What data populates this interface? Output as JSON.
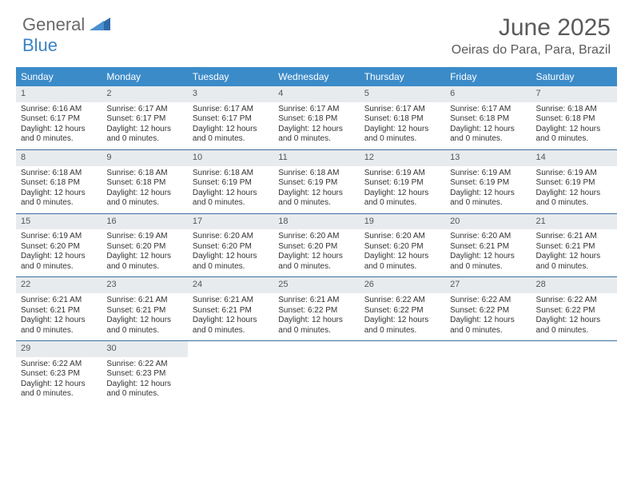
{
  "brand": {
    "word1": "General",
    "word2": "Blue"
  },
  "title": "June 2025",
  "location": "Oeiras do Para, Para, Brazil",
  "colors": {
    "header_bg": "#3b8bc9",
    "header_text": "#ffffff",
    "daynum_bg": "#e8ebee",
    "week_border": "#3b6fa0",
    "brand_gray": "#6a6a6a",
    "brand_blue": "#3b82c4",
    "title_color": "#5a5a5a",
    "body_text": "#333333"
  },
  "typography": {
    "title_fontsize": 30,
    "location_fontsize": 16,
    "dow_fontsize": 12,
    "daynum_fontsize": 11,
    "cell_fontsize": 10
  },
  "daysOfWeek": [
    "Sunday",
    "Monday",
    "Tuesday",
    "Wednesday",
    "Thursday",
    "Friday",
    "Saturday"
  ],
  "weeks": [
    [
      {
        "n": "1",
        "sunrise": "Sunrise: 6:16 AM",
        "sunset": "Sunset: 6:17 PM",
        "day": "Daylight: 12 hours and 0 minutes."
      },
      {
        "n": "2",
        "sunrise": "Sunrise: 6:17 AM",
        "sunset": "Sunset: 6:17 PM",
        "day": "Daylight: 12 hours and 0 minutes."
      },
      {
        "n": "3",
        "sunrise": "Sunrise: 6:17 AM",
        "sunset": "Sunset: 6:17 PM",
        "day": "Daylight: 12 hours and 0 minutes."
      },
      {
        "n": "4",
        "sunrise": "Sunrise: 6:17 AM",
        "sunset": "Sunset: 6:18 PM",
        "day": "Daylight: 12 hours and 0 minutes."
      },
      {
        "n": "5",
        "sunrise": "Sunrise: 6:17 AM",
        "sunset": "Sunset: 6:18 PM",
        "day": "Daylight: 12 hours and 0 minutes."
      },
      {
        "n": "6",
        "sunrise": "Sunrise: 6:17 AM",
        "sunset": "Sunset: 6:18 PM",
        "day": "Daylight: 12 hours and 0 minutes."
      },
      {
        "n": "7",
        "sunrise": "Sunrise: 6:18 AM",
        "sunset": "Sunset: 6:18 PM",
        "day": "Daylight: 12 hours and 0 minutes."
      }
    ],
    [
      {
        "n": "8",
        "sunrise": "Sunrise: 6:18 AM",
        "sunset": "Sunset: 6:18 PM",
        "day": "Daylight: 12 hours and 0 minutes."
      },
      {
        "n": "9",
        "sunrise": "Sunrise: 6:18 AM",
        "sunset": "Sunset: 6:18 PM",
        "day": "Daylight: 12 hours and 0 minutes."
      },
      {
        "n": "10",
        "sunrise": "Sunrise: 6:18 AM",
        "sunset": "Sunset: 6:19 PM",
        "day": "Daylight: 12 hours and 0 minutes."
      },
      {
        "n": "11",
        "sunrise": "Sunrise: 6:18 AM",
        "sunset": "Sunset: 6:19 PM",
        "day": "Daylight: 12 hours and 0 minutes."
      },
      {
        "n": "12",
        "sunrise": "Sunrise: 6:19 AM",
        "sunset": "Sunset: 6:19 PM",
        "day": "Daylight: 12 hours and 0 minutes."
      },
      {
        "n": "13",
        "sunrise": "Sunrise: 6:19 AM",
        "sunset": "Sunset: 6:19 PM",
        "day": "Daylight: 12 hours and 0 minutes."
      },
      {
        "n": "14",
        "sunrise": "Sunrise: 6:19 AM",
        "sunset": "Sunset: 6:19 PM",
        "day": "Daylight: 12 hours and 0 minutes."
      }
    ],
    [
      {
        "n": "15",
        "sunrise": "Sunrise: 6:19 AM",
        "sunset": "Sunset: 6:20 PM",
        "day": "Daylight: 12 hours and 0 minutes."
      },
      {
        "n": "16",
        "sunrise": "Sunrise: 6:19 AM",
        "sunset": "Sunset: 6:20 PM",
        "day": "Daylight: 12 hours and 0 minutes."
      },
      {
        "n": "17",
        "sunrise": "Sunrise: 6:20 AM",
        "sunset": "Sunset: 6:20 PM",
        "day": "Daylight: 12 hours and 0 minutes."
      },
      {
        "n": "18",
        "sunrise": "Sunrise: 6:20 AM",
        "sunset": "Sunset: 6:20 PM",
        "day": "Daylight: 12 hours and 0 minutes."
      },
      {
        "n": "19",
        "sunrise": "Sunrise: 6:20 AM",
        "sunset": "Sunset: 6:20 PM",
        "day": "Daylight: 12 hours and 0 minutes."
      },
      {
        "n": "20",
        "sunrise": "Sunrise: 6:20 AM",
        "sunset": "Sunset: 6:21 PM",
        "day": "Daylight: 12 hours and 0 minutes."
      },
      {
        "n": "21",
        "sunrise": "Sunrise: 6:21 AM",
        "sunset": "Sunset: 6:21 PM",
        "day": "Daylight: 12 hours and 0 minutes."
      }
    ],
    [
      {
        "n": "22",
        "sunrise": "Sunrise: 6:21 AM",
        "sunset": "Sunset: 6:21 PM",
        "day": "Daylight: 12 hours and 0 minutes."
      },
      {
        "n": "23",
        "sunrise": "Sunrise: 6:21 AM",
        "sunset": "Sunset: 6:21 PM",
        "day": "Daylight: 12 hours and 0 minutes."
      },
      {
        "n": "24",
        "sunrise": "Sunrise: 6:21 AM",
        "sunset": "Sunset: 6:21 PM",
        "day": "Daylight: 12 hours and 0 minutes."
      },
      {
        "n": "25",
        "sunrise": "Sunrise: 6:21 AM",
        "sunset": "Sunset: 6:22 PM",
        "day": "Daylight: 12 hours and 0 minutes."
      },
      {
        "n": "26",
        "sunrise": "Sunrise: 6:22 AM",
        "sunset": "Sunset: 6:22 PM",
        "day": "Daylight: 12 hours and 0 minutes."
      },
      {
        "n": "27",
        "sunrise": "Sunrise: 6:22 AM",
        "sunset": "Sunset: 6:22 PM",
        "day": "Daylight: 12 hours and 0 minutes."
      },
      {
        "n": "28",
        "sunrise": "Sunrise: 6:22 AM",
        "sunset": "Sunset: 6:22 PM",
        "day": "Daylight: 12 hours and 0 minutes."
      }
    ],
    [
      {
        "n": "29",
        "sunrise": "Sunrise: 6:22 AM",
        "sunset": "Sunset: 6:23 PM",
        "day": "Daylight: 12 hours and 0 minutes."
      },
      {
        "n": "30",
        "sunrise": "Sunrise: 6:22 AM",
        "sunset": "Sunset: 6:23 PM",
        "day": "Daylight: 12 hours and 0 minutes."
      },
      {
        "empty": true
      },
      {
        "empty": true
      },
      {
        "empty": true
      },
      {
        "empty": true
      },
      {
        "empty": true
      }
    ]
  ]
}
